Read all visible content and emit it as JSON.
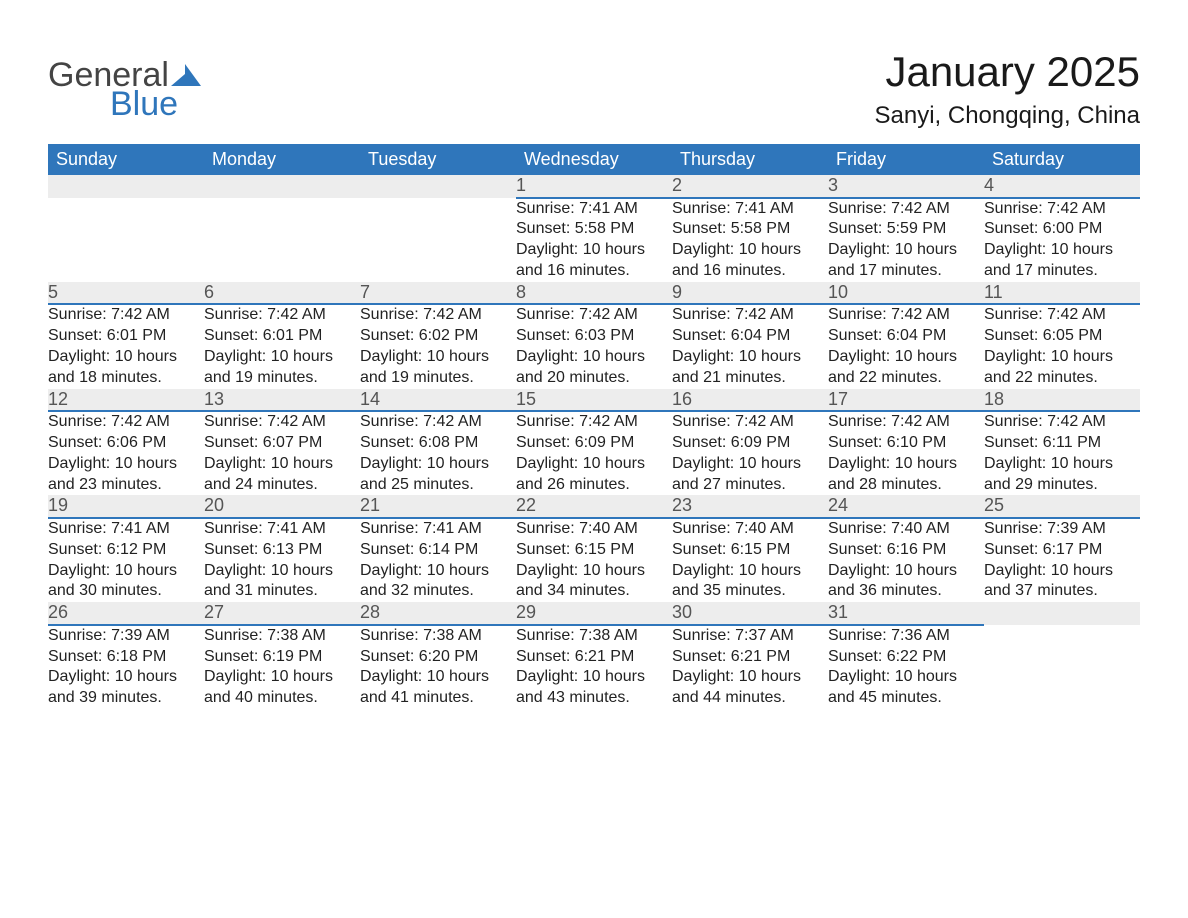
{
  "logo": {
    "line1": "General",
    "line2": "Blue",
    "mark_color": "#2f76bb",
    "text_gray": "#444444"
  },
  "title": {
    "month": "January 2025",
    "location": "Sanyi, Chongqing, China"
  },
  "colors": {
    "header_bg": "#2f76bb",
    "header_text": "#ffffff",
    "daynum_bg": "#ededed",
    "daynum_text": "#555555",
    "body_text": "#222222",
    "rule": "#2f76bb",
    "page_bg": "#ffffff"
  },
  "typography": {
    "title_fontsize": 42,
    "location_fontsize": 24,
    "header_fontsize": 18,
    "daynum_fontsize": 18,
    "cell_fontsize": 16,
    "font_family": "Segoe UI"
  },
  "weekdays": [
    "Sunday",
    "Monday",
    "Tuesday",
    "Wednesday",
    "Thursday",
    "Friday",
    "Saturday"
  ],
  "weeks": [
    [
      null,
      null,
      null,
      {
        "n": "1",
        "sr": "7:41 AM",
        "ss": "5:58 PM",
        "dl": "10 hours and 16 minutes."
      },
      {
        "n": "2",
        "sr": "7:41 AM",
        "ss": "5:58 PM",
        "dl": "10 hours and 16 minutes."
      },
      {
        "n": "3",
        "sr": "7:42 AM",
        "ss": "5:59 PM",
        "dl": "10 hours and 17 minutes."
      },
      {
        "n": "4",
        "sr": "7:42 AM",
        "ss": "6:00 PM",
        "dl": "10 hours and 17 minutes."
      }
    ],
    [
      {
        "n": "5",
        "sr": "7:42 AM",
        "ss": "6:01 PM",
        "dl": "10 hours and 18 minutes."
      },
      {
        "n": "6",
        "sr": "7:42 AM",
        "ss": "6:01 PM",
        "dl": "10 hours and 19 minutes."
      },
      {
        "n": "7",
        "sr": "7:42 AM",
        "ss": "6:02 PM",
        "dl": "10 hours and 19 minutes."
      },
      {
        "n": "8",
        "sr": "7:42 AM",
        "ss": "6:03 PM",
        "dl": "10 hours and 20 minutes."
      },
      {
        "n": "9",
        "sr": "7:42 AM",
        "ss": "6:04 PM",
        "dl": "10 hours and 21 minutes."
      },
      {
        "n": "10",
        "sr": "7:42 AM",
        "ss": "6:04 PM",
        "dl": "10 hours and 22 minutes."
      },
      {
        "n": "11",
        "sr": "7:42 AM",
        "ss": "6:05 PM",
        "dl": "10 hours and 22 minutes."
      }
    ],
    [
      {
        "n": "12",
        "sr": "7:42 AM",
        "ss": "6:06 PM",
        "dl": "10 hours and 23 minutes."
      },
      {
        "n": "13",
        "sr": "7:42 AM",
        "ss": "6:07 PM",
        "dl": "10 hours and 24 minutes."
      },
      {
        "n": "14",
        "sr": "7:42 AM",
        "ss": "6:08 PM",
        "dl": "10 hours and 25 minutes."
      },
      {
        "n": "15",
        "sr": "7:42 AM",
        "ss": "6:09 PM",
        "dl": "10 hours and 26 minutes."
      },
      {
        "n": "16",
        "sr": "7:42 AM",
        "ss": "6:09 PM",
        "dl": "10 hours and 27 minutes."
      },
      {
        "n": "17",
        "sr": "7:42 AM",
        "ss": "6:10 PM",
        "dl": "10 hours and 28 minutes."
      },
      {
        "n": "18",
        "sr": "7:42 AM",
        "ss": "6:11 PM",
        "dl": "10 hours and 29 minutes."
      }
    ],
    [
      {
        "n": "19",
        "sr": "7:41 AM",
        "ss": "6:12 PM",
        "dl": "10 hours and 30 minutes."
      },
      {
        "n": "20",
        "sr": "7:41 AM",
        "ss": "6:13 PM",
        "dl": "10 hours and 31 minutes."
      },
      {
        "n": "21",
        "sr": "7:41 AM",
        "ss": "6:14 PM",
        "dl": "10 hours and 32 minutes."
      },
      {
        "n": "22",
        "sr": "7:40 AM",
        "ss": "6:15 PM",
        "dl": "10 hours and 34 minutes."
      },
      {
        "n": "23",
        "sr": "7:40 AM",
        "ss": "6:15 PM",
        "dl": "10 hours and 35 minutes."
      },
      {
        "n": "24",
        "sr": "7:40 AM",
        "ss": "6:16 PM",
        "dl": "10 hours and 36 minutes."
      },
      {
        "n": "25",
        "sr": "7:39 AM",
        "ss": "6:17 PM",
        "dl": "10 hours and 37 minutes."
      }
    ],
    [
      {
        "n": "26",
        "sr": "7:39 AM",
        "ss": "6:18 PM",
        "dl": "10 hours and 39 minutes."
      },
      {
        "n": "27",
        "sr": "7:38 AM",
        "ss": "6:19 PM",
        "dl": "10 hours and 40 minutes."
      },
      {
        "n": "28",
        "sr": "7:38 AM",
        "ss": "6:20 PM",
        "dl": "10 hours and 41 minutes."
      },
      {
        "n": "29",
        "sr": "7:38 AM",
        "ss": "6:21 PM",
        "dl": "10 hours and 43 minutes."
      },
      {
        "n": "30",
        "sr": "7:37 AM",
        "ss": "6:21 PM",
        "dl": "10 hours and 44 minutes."
      },
      {
        "n": "31",
        "sr": "7:36 AM",
        "ss": "6:22 PM",
        "dl": "10 hours and 45 minutes."
      },
      null
    ]
  ],
  "labels": {
    "sunrise": "Sunrise: ",
    "sunset": "Sunset: ",
    "daylight": "Daylight: "
  }
}
